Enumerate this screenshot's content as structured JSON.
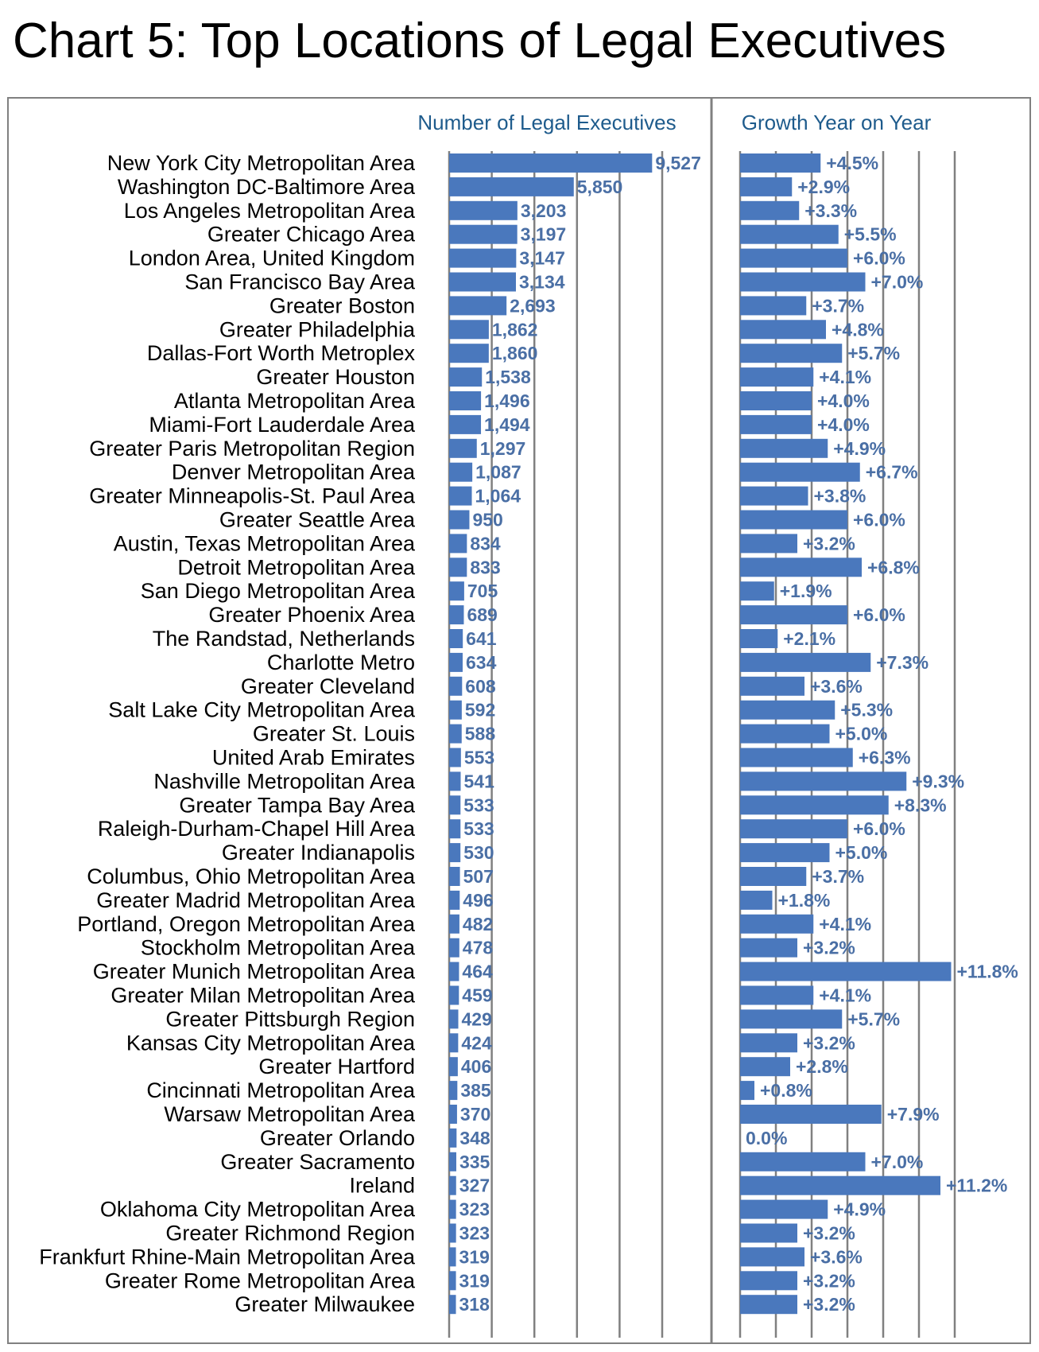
{
  "title": "Chart 5: Top Locations of Legal Executives",
  "colors": {
    "bar": "#4a78bd",
    "value_label": "#4a6fa5",
    "header": "#1e5b8c",
    "grid": "#808080",
    "frame": "#808080"
  },
  "chart_data": [
    {
      "type": "bar",
      "orientation": "horizontal",
      "title": "Number of Legal Executives",
      "grid": true,
      "xlim": [
        0,
        10000
      ],
      "categories": [
        "New York City Metropolitan Area",
        "Washington DC-Baltimore Area",
        "Los Angeles Metropolitan Area",
        "Greater Chicago Area",
        "London Area, United Kingdom",
        "San Francisco Bay Area",
        "Greater Boston",
        "Greater Philadelphia",
        "Dallas-Fort Worth Metroplex",
        "Greater Houston",
        "Atlanta Metropolitan Area",
        "Miami-Fort Lauderdale Area",
        "Greater Paris Metropolitan Region",
        "Denver Metropolitan Area",
        "Greater Minneapolis-St. Paul Area",
        "Greater Seattle Area",
        "Austin, Texas Metropolitan Area",
        "Detroit Metropolitan Area",
        "San Diego Metropolitan Area",
        "Greater Phoenix Area",
        "The Randstad, Netherlands",
        "Charlotte Metro",
        "Greater Cleveland",
        "Salt Lake City Metropolitan Area",
        "Greater St. Louis",
        "United Arab Emirates",
        "Nashville Metropolitan Area",
        "Greater Tampa Bay Area",
        "Raleigh-Durham-Chapel Hill Area",
        "Greater Indianapolis",
        "Columbus, Ohio Metropolitan Area",
        "Greater Madrid Metropolitan Area",
        "Portland, Oregon Metropolitan Area",
        "Stockholm Metropolitan Area",
        "Greater Munich Metropolitan Area",
        "Greater Milan Metropolitan Area",
        "Greater Pittsburgh Region",
        "Kansas City Metropolitan Area",
        "Greater Hartford",
        "Cincinnati Metropolitan Area",
        "Warsaw Metropolitan Area",
        "Greater Orlando",
        "Greater Sacramento",
        "Ireland",
        "Oklahoma City Metropolitan Area",
        "Greater Richmond Region",
        "Frankfurt Rhine-Main Metropolitan Area",
        "Greater Rome Metropolitan Area",
        "Greater Milwaukee"
      ],
      "values": [
        9527,
        5850,
        3203,
        3197,
        3147,
        3134,
        2693,
        1862,
        1860,
        1538,
        1496,
        1494,
        1297,
        1087,
        1064,
        950,
        834,
        833,
        705,
        689,
        641,
        634,
        608,
        592,
        588,
        553,
        541,
        533,
        533,
        530,
        507,
        496,
        482,
        478,
        464,
        459,
        429,
        424,
        406,
        385,
        370,
        348,
        335,
        327,
        323,
        323,
        319,
        319,
        318
      ],
      "labels": [
        "9,527",
        "5,850",
        "3,203",
        "3,197",
        "3,147",
        "3,134",
        "2,693",
        "1,862",
        "1,860",
        "1,538",
        "1,496",
        "1,494",
        "1,297",
        "1,087",
        "1,064",
        "950",
        "834",
        "833",
        "705",
        "689",
        "641",
        "634",
        "608",
        "592",
        "588",
        "553",
        "541",
        "533",
        "533",
        "530",
        "507",
        "496",
        "482",
        "478",
        "464",
        "459",
        "429",
        "424",
        "406",
        "385",
        "370",
        "348",
        "335",
        "327",
        "323",
        "323",
        "319",
        "319",
        "318"
      ]
    },
    {
      "type": "bar",
      "orientation": "horizontal",
      "title": "Growth Year on Year",
      "grid": true,
      "xlim": [
        0,
        12
      ],
      "values": [
        4.5,
        2.9,
        3.3,
        5.5,
        6.0,
        7.0,
        3.7,
        4.8,
        5.7,
        4.1,
        4.0,
        4.0,
        4.9,
        6.7,
        3.8,
        6.0,
        3.2,
        6.8,
        1.9,
        6.0,
        2.1,
        7.3,
        3.6,
        5.3,
        5.0,
        6.3,
        9.3,
        8.3,
        6.0,
        5.0,
        3.7,
        1.8,
        4.1,
        3.2,
        11.8,
        4.1,
        5.7,
        3.2,
        2.8,
        0.8,
        7.9,
        0.0,
        7.0,
        11.2,
        4.9,
        3.2,
        3.6,
        3.2,
        3.2
      ],
      "labels": [
        "+4.5%",
        "+2.9%",
        "+3.3%",
        "+5.5%",
        "+6.0%",
        "+7.0%",
        "+3.7%",
        "+4.8%",
        "+5.7%",
        "+4.1%",
        "+4.0%",
        "+4.0%",
        "+4.9%",
        "+6.7%",
        "+3.8%",
        "+6.0%",
        "+3.2%",
        "+6.8%",
        "+1.9%",
        "+6.0%",
        "+2.1%",
        "+7.3%",
        "+3.6%",
        "+5.3%",
        "+5.0%",
        "+6.3%",
        "+9.3%",
        "+8.3%",
        "+6.0%",
        "+5.0%",
        "+3.7%",
        "+1.8%",
        "+4.1%",
        "+3.2%",
        "+11.8%",
        "+4.1%",
        "+5.7%",
        "+3.2%",
        "+2.8%",
        "+0.8%",
        "+7.9%",
        "0.0%",
        "+7.0%",
        "+11.2%",
        "+4.9%",
        "+3.2%",
        "+3.6%",
        "+3.2%",
        "+3.2%"
      ]
    }
  ]
}
